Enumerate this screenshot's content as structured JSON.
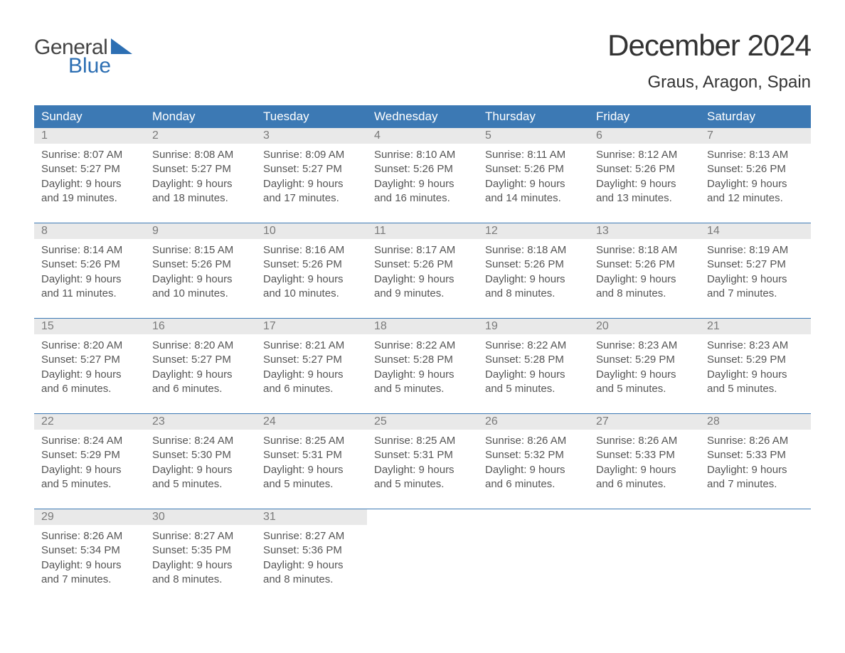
{
  "brand": {
    "word1": "General",
    "word2": "Blue",
    "accent_color": "#2d6fb3"
  },
  "title": "December 2024",
  "location": "Graus, Aragon, Spain",
  "colors": {
    "header_bg": "#3c79b4",
    "header_text": "#ffffff",
    "daynum_bg": "#e9e9e9",
    "daynum_text": "#7a7a7a",
    "body_text": "#555555",
    "rule": "#3c79b4"
  },
  "day_names": [
    "Sunday",
    "Monday",
    "Tuesday",
    "Wednesday",
    "Thursday",
    "Friday",
    "Saturday"
  ],
  "weeks": [
    [
      {
        "num": "1",
        "sunrise": "Sunrise: 8:07 AM",
        "sunset": "Sunset: 5:27 PM",
        "daylight": "Daylight: 9 hours and 19 minutes."
      },
      {
        "num": "2",
        "sunrise": "Sunrise: 8:08 AM",
        "sunset": "Sunset: 5:27 PM",
        "daylight": "Daylight: 9 hours and 18 minutes."
      },
      {
        "num": "3",
        "sunrise": "Sunrise: 8:09 AM",
        "sunset": "Sunset: 5:27 PM",
        "daylight": "Daylight: 9 hours and 17 minutes."
      },
      {
        "num": "4",
        "sunrise": "Sunrise: 8:10 AM",
        "sunset": "Sunset: 5:26 PM",
        "daylight": "Daylight: 9 hours and 16 minutes."
      },
      {
        "num": "5",
        "sunrise": "Sunrise: 8:11 AM",
        "sunset": "Sunset: 5:26 PM",
        "daylight": "Daylight: 9 hours and 14 minutes."
      },
      {
        "num": "6",
        "sunrise": "Sunrise: 8:12 AM",
        "sunset": "Sunset: 5:26 PM",
        "daylight": "Daylight: 9 hours and 13 minutes."
      },
      {
        "num": "7",
        "sunrise": "Sunrise: 8:13 AM",
        "sunset": "Sunset: 5:26 PM",
        "daylight": "Daylight: 9 hours and 12 minutes."
      }
    ],
    [
      {
        "num": "8",
        "sunrise": "Sunrise: 8:14 AM",
        "sunset": "Sunset: 5:26 PM",
        "daylight": "Daylight: 9 hours and 11 minutes."
      },
      {
        "num": "9",
        "sunrise": "Sunrise: 8:15 AM",
        "sunset": "Sunset: 5:26 PM",
        "daylight": "Daylight: 9 hours and 10 minutes."
      },
      {
        "num": "10",
        "sunrise": "Sunrise: 8:16 AM",
        "sunset": "Sunset: 5:26 PM",
        "daylight": "Daylight: 9 hours and 10 minutes."
      },
      {
        "num": "11",
        "sunrise": "Sunrise: 8:17 AM",
        "sunset": "Sunset: 5:26 PM",
        "daylight": "Daylight: 9 hours and 9 minutes."
      },
      {
        "num": "12",
        "sunrise": "Sunrise: 8:18 AM",
        "sunset": "Sunset: 5:26 PM",
        "daylight": "Daylight: 9 hours and 8 minutes."
      },
      {
        "num": "13",
        "sunrise": "Sunrise: 8:18 AM",
        "sunset": "Sunset: 5:26 PM",
        "daylight": "Daylight: 9 hours and 8 minutes."
      },
      {
        "num": "14",
        "sunrise": "Sunrise: 8:19 AM",
        "sunset": "Sunset: 5:27 PM",
        "daylight": "Daylight: 9 hours and 7 minutes."
      }
    ],
    [
      {
        "num": "15",
        "sunrise": "Sunrise: 8:20 AM",
        "sunset": "Sunset: 5:27 PM",
        "daylight": "Daylight: 9 hours and 6 minutes."
      },
      {
        "num": "16",
        "sunrise": "Sunrise: 8:20 AM",
        "sunset": "Sunset: 5:27 PM",
        "daylight": "Daylight: 9 hours and 6 minutes."
      },
      {
        "num": "17",
        "sunrise": "Sunrise: 8:21 AM",
        "sunset": "Sunset: 5:27 PM",
        "daylight": "Daylight: 9 hours and 6 minutes."
      },
      {
        "num": "18",
        "sunrise": "Sunrise: 8:22 AM",
        "sunset": "Sunset: 5:28 PM",
        "daylight": "Daylight: 9 hours and 5 minutes."
      },
      {
        "num": "19",
        "sunrise": "Sunrise: 8:22 AM",
        "sunset": "Sunset: 5:28 PM",
        "daylight": "Daylight: 9 hours and 5 minutes."
      },
      {
        "num": "20",
        "sunrise": "Sunrise: 8:23 AM",
        "sunset": "Sunset: 5:29 PM",
        "daylight": "Daylight: 9 hours and 5 minutes."
      },
      {
        "num": "21",
        "sunrise": "Sunrise: 8:23 AM",
        "sunset": "Sunset: 5:29 PM",
        "daylight": "Daylight: 9 hours and 5 minutes."
      }
    ],
    [
      {
        "num": "22",
        "sunrise": "Sunrise: 8:24 AM",
        "sunset": "Sunset: 5:29 PM",
        "daylight": "Daylight: 9 hours and 5 minutes."
      },
      {
        "num": "23",
        "sunrise": "Sunrise: 8:24 AM",
        "sunset": "Sunset: 5:30 PM",
        "daylight": "Daylight: 9 hours and 5 minutes."
      },
      {
        "num": "24",
        "sunrise": "Sunrise: 8:25 AM",
        "sunset": "Sunset: 5:31 PM",
        "daylight": "Daylight: 9 hours and 5 minutes."
      },
      {
        "num": "25",
        "sunrise": "Sunrise: 8:25 AM",
        "sunset": "Sunset: 5:31 PM",
        "daylight": "Daylight: 9 hours and 5 minutes."
      },
      {
        "num": "26",
        "sunrise": "Sunrise: 8:26 AM",
        "sunset": "Sunset: 5:32 PM",
        "daylight": "Daylight: 9 hours and 6 minutes."
      },
      {
        "num": "27",
        "sunrise": "Sunrise: 8:26 AM",
        "sunset": "Sunset: 5:33 PM",
        "daylight": "Daylight: 9 hours and 6 minutes."
      },
      {
        "num": "28",
        "sunrise": "Sunrise: 8:26 AM",
        "sunset": "Sunset: 5:33 PM",
        "daylight": "Daylight: 9 hours and 7 minutes."
      }
    ],
    [
      {
        "num": "29",
        "sunrise": "Sunrise: 8:26 AM",
        "sunset": "Sunset: 5:34 PM",
        "daylight": "Daylight: 9 hours and 7 minutes."
      },
      {
        "num": "30",
        "sunrise": "Sunrise: 8:27 AM",
        "sunset": "Sunset: 5:35 PM",
        "daylight": "Daylight: 9 hours and 8 minutes."
      },
      {
        "num": "31",
        "sunrise": "Sunrise: 8:27 AM",
        "sunset": "Sunset: 5:36 PM",
        "daylight": "Daylight: 9 hours and 8 minutes."
      },
      null,
      null,
      null,
      null
    ]
  ]
}
